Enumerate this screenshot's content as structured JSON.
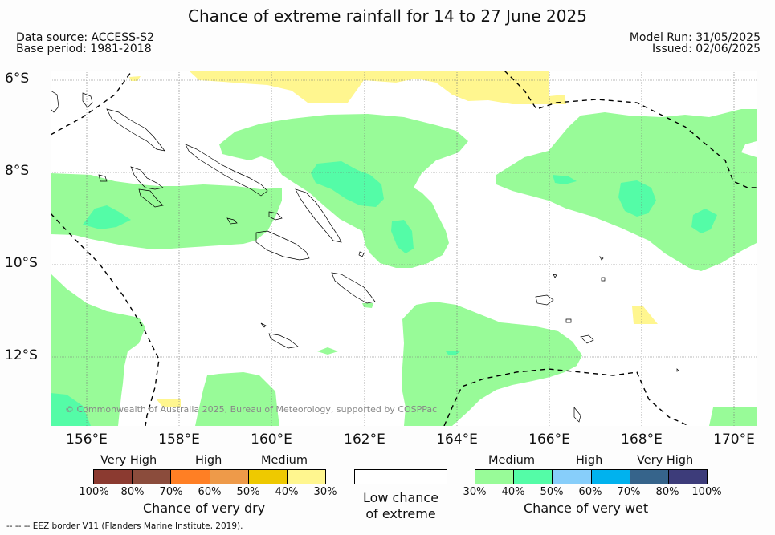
{
  "title": "Chance of extreme rainfall for 14 to 27 June 2025",
  "meta": {
    "data_source": "Data source: ACCESS-S2",
    "base_period": "Base period: 1981-2018",
    "model_run": "Model Run: 31/05/2025",
    "issued": "Issued: 02/06/2025"
  },
  "map": {
    "lat_labels": [
      "6°S",
      "8°S",
      "10°S",
      "12°S"
    ],
    "lon_labels": [
      "156°E",
      "158°E",
      "160°E",
      "162°E",
      "164°E",
      "166°E",
      "168°E",
      "170°E"
    ],
    "copyright": "© Commonwealth of Australia 2025, Bureau of Meteorology, supported by COSPPac",
    "colors": {
      "medium_wet": "#98fb98",
      "high_wet": "#54fca7",
      "medium_dry": "#fff68f",
      "land_outline": "#000000",
      "eez_border": "#000000"
    }
  },
  "legend_dry": {
    "top_labels": [
      "Very High",
      "High",
      "Medium"
    ],
    "ticks": [
      "100%",
      "80%",
      "70%",
      "60%",
      "50%",
      "40%",
      "30%"
    ],
    "colors": [
      "#8b3a30",
      "#8b4c3c",
      "#ff7f24",
      "#ee9a49",
      "#eec900",
      "#fff68f"
    ],
    "title": "Chance of very dry"
  },
  "legend_neutral": {
    "line1": "Low chance",
    "line2": "of extreme",
    "color": "#ffffff"
  },
  "legend_wet": {
    "top_labels": [
      "Medium",
      "High",
      "Very High"
    ],
    "ticks": [
      "30%",
      "40%",
      "50%",
      "60%",
      "70%",
      "80%",
      "100%"
    ],
    "colors": [
      "#98fb98",
      "#54fca7",
      "#87cefa",
      "#00b2ee",
      "#36648b",
      "#3d3c7a"
    ],
    "title": "Chance of very wet"
  },
  "footer": "--  --  -- EEZ border V11 (Flanders Marine Institute, 2019)."
}
